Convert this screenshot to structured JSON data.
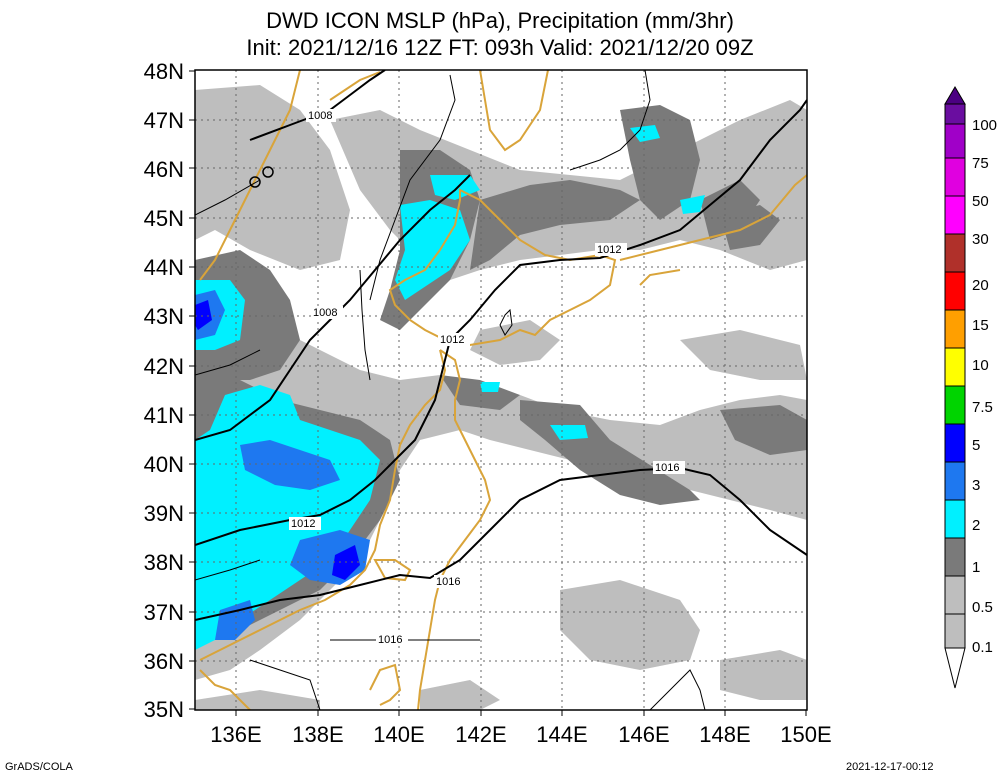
{
  "title": {
    "line1": "DWD ICON MSLP (hPa), Precipitation (mm/3hr)",
    "line2": "Init: 2021/12/16 12Z  FT: 093h  Valid: 2021/12/20 09Z"
  },
  "map": {
    "lat_labels": [
      "48N",
      "47N",
      "46N",
      "45N",
      "44N",
      "43N",
      "42N",
      "41N",
      "40N",
      "39N",
      "38N",
      "37N",
      "36N",
      "35N"
    ],
    "lon_labels": [
      "136E",
      "138E",
      "140E",
      "142E",
      "144E",
      "146E",
      "148E",
      "150E"
    ],
    "isobar_labels": [
      "1008",
      "1008",
      "1012",
      "1012",
      "1012",
      "1016",
      "1016",
      "1016"
    ],
    "colors": {
      "coast": "#d9a43a",
      "isobar": "#000000",
      "grid": "#555555"
    }
  },
  "colorbar": {
    "labels": [
      "100",
      "75",
      "50",
      "30",
      "20",
      "15",
      "10",
      "7.5",
      "5",
      "3",
      "2",
      "1",
      "0.5",
      "0.1"
    ],
    "colors": [
      "#6a0da0",
      "#a000c8",
      "#e000e0",
      "#ff00ff",
      "#b0302a",
      "#ff0000",
      "#ff9f00",
      "#ffff00",
      "#00d400",
      "#0000ff",
      "#1e78f0",
      "#00f0ff",
      "#7a7a7a",
      "#bebebe"
    ]
  },
  "footer": {
    "left": "GrADS/COLA",
    "right": "2021-12-17-00:12"
  }
}
